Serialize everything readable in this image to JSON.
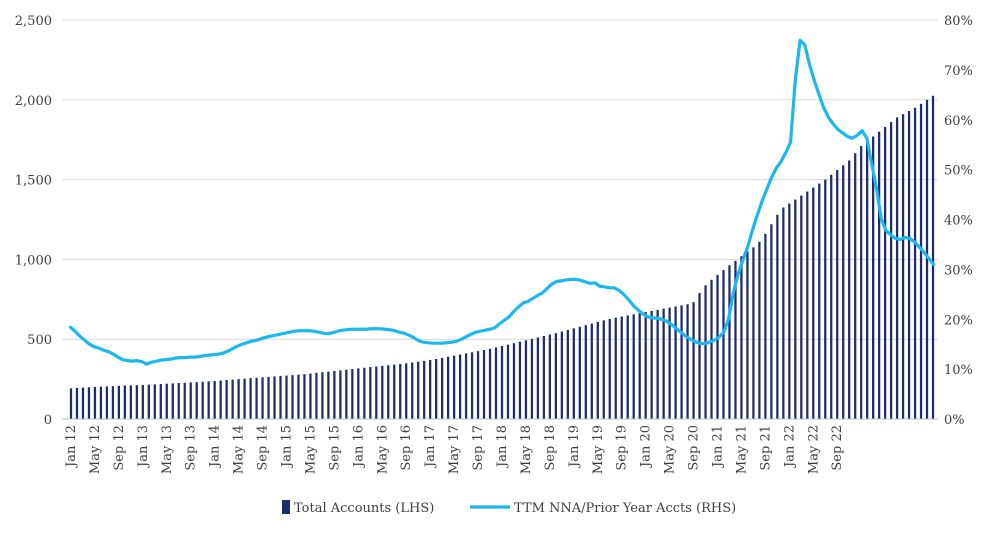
{
  "chart_data": {
    "type": "bar",
    "combo": "bar + line (dual axis)",
    "title": "",
    "xlabel": "",
    "ylabel_left": "",
    "ylabel_right": "",
    "ylim_left": [
      0,
      2500
    ],
    "ylim_right": [
      0,
      80
    ],
    "y_ticks_left": [
      "0",
      "500",
      "1,000",
      "1,500",
      "2,000",
      "2,500"
    ],
    "y_ticks_right": [
      "0%",
      "10%",
      "20%",
      "30%",
      "40%",
      "50%",
      "60%",
      "70%",
      "80%"
    ],
    "x_tick_labels": [
      "Jan 12",
      "May 12",
      "Sep 12",
      "Jan 13",
      "May 13",
      "Sep 13",
      "Jan 14",
      "May 14",
      "Sep 14",
      "Jan 15",
      "May 15",
      "Sep 15",
      "Jan 16",
      "May 16",
      "Sep 16",
      "Jan 17",
      "May 17",
      "Sep 17",
      "Jan 18",
      "May 18",
      "Sep 18",
      "Jan 19",
      "May 19",
      "Sep 19",
      "Jan 20",
      "May 20",
      "Sep 20",
      "Jan 21",
      "May 21",
      "Sep 21",
      "Jan 22",
      "May 22",
      "Sep 22"
    ],
    "x_start": "Jan 12",
    "x_end": "Sep 22",
    "grid": "horizontal",
    "legend_position": "bottom",
    "colors": {
      "bars": "#1f2d6b",
      "line": "#1ab8ec",
      "grid": "#d9d9d9",
      "text": "#404040"
    },
    "series": [
      {
        "name": "Total Accounts (LHS)",
        "kind": "bar",
        "axis": "left",
        "values": [
          192,
          195,
          197,
          199,
          201,
          203,
          204,
          206,
          208,
          210,
          211,
          212,
          213,
          215,
          217,
          219,
          221,
          223,
          225,
          227,
          229,
          231,
          233,
          236,
          238,
          241,
          244,
          247,
          250,
          253,
          256,
          258,
          261,
          264,
          267,
          270,
          272,
          275,
          278,
          281,
          285,
          289,
          293,
          297,
          301,
          305,
          309,
          313,
          317,
          321,
          325,
          329,
          333,
          337,
          341,
          345,
          349,
          354,
          359,
          364,
          370,
          376,
          383,
          390,
          397,
          404,
          411,
          418,
          425,
          432,
          440,
          448,
          457,
          466,
          475,
          484,
          493,
          502,
          511,
          520,
          529,
          538,
          548,
          558,
          568,
          578,
          588,
          598,
          608,
          618,
          627,
          635,
          642,
          649,
          656,
          663,
          670,
          677,
          684,
          691,
          698,
          705,
          712,
          719,
          732,
          790,
          837,
          872,
          903,
          933,
          963,
          991,
          1020,
          1050,
          1075,
          1110,
          1160,
          1220,
          1280,
          1325,
          1350,
          1375,
          1400,
          1425,
          1450,
          1475,
          1500,
          1530,
          1560,
          1590,
          1620,
          1665,
          1710,
          1740,
          1770,
          1800,
          1830,
          1860,
          1890,
          1910,
          1930,
          1950,
          1975,
          2000,
          2025
        ]
      },
      {
        "name": "TTM NNA/Prior Year Accts (RHS)",
        "kind": "line",
        "axis": "right",
        "values": [
          18.4,
          17.6,
          16.6,
          15.8,
          15.0,
          14.5,
          14.2,
          13.8,
          13.5,
          13.0,
          12.4,
          11.9,
          11.7,
          11.6,
          11.7,
          11.5,
          11.0,
          11.4,
          11.6,
          11.8,
          11.9,
          12.0,
          12.2,
          12.3,
          12.3,
          12.4,
          12.4,
          12.5,
          12.7,
          12.8,
          12.9,
          13.0,
          13.2,
          13.6,
          14.1,
          14.6,
          15.0,
          15.3,
          15.6,
          15.8,
          16.1,
          16.4,
          16.6,
          16.8,
          17.0,
          17.2,
          17.4,
          17.6,
          17.7,
          17.7,
          17.7,
          17.6,
          17.4,
          17.2,
          17.1,
          17.3,
          17.6,
          17.8,
          17.9,
          18.0,
          18.0,
          18.0,
          18.0,
          18.1,
          18.1,
          18.1,
          18.0,
          17.9,
          17.7,
          17.4,
          17.2,
          16.8,
          16.3,
          15.7,
          15.4,
          15.3,
          15.2,
          15.2,
          15.2,
          15.3,
          15.4,
          15.6,
          16.0,
          16.5,
          17.0,
          17.4,
          17.6,
          17.8,
          18.0,
          18.3,
          19.1,
          19.8,
          20.5,
          21.6,
          22.5,
          23.3,
          23.6,
          24.2,
          24.8,
          25.3,
          26.2,
          27.1,
          27.6,
          27.7,
          27.9,
          28.0,
          28.0,
          27.8,
          27.5,
          27.2,
          27.3,
          26.6,
          26.5,
          26.3,
          26.3,
          25.8,
          25.0,
          24.0,
          22.8,
          21.9,
          21.1,
          20.5,
          20.3,
          20.2,
          20.0,
          19.6,
          19.0,
          18.2,
          17.4,
          16.6,
          16.0,
          15.5,
          15.2,
          15.1,
          15.4,
          15.8,
          16.4,
          17.4,
          20.0,
          25.3,
          29.0,
          31.8,
          34.5,
          37.8,
          40.8,
          43.6,
          46.0,
          48.4,
          50.3,
          51.6,
          53.4,
          55.5,
          68.0,
          75.9,
          75.0,
          71.0,
          67.8,
          65.0,
          62.3,
          60.4,
          59.1,
          58.0,
          57.3,
          56.6,
          56.3,
          56.9,
          57.8,
          56.3,
          51.2,
          46.4,
          40.2,
          37.8,
          36.9,
          36.2,
          36.0,
          36.4,
          36.2,
          35.5,
          34.5,
          33.4,
          32.2,
          31.0
        ]
      }
    ]
  }
}
